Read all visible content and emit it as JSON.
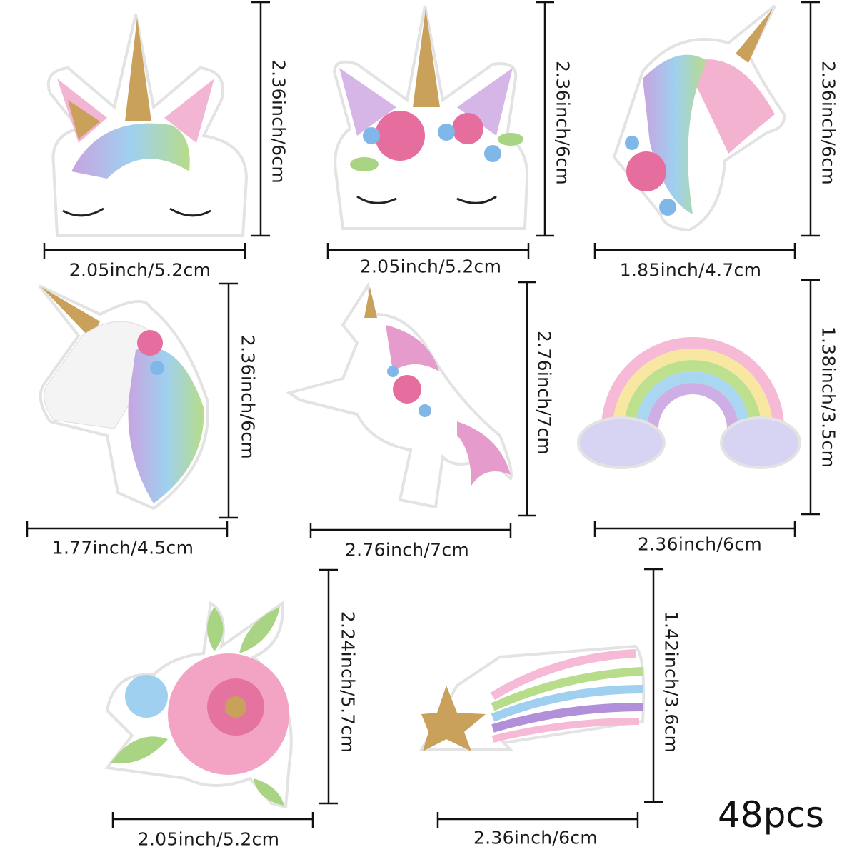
{
  "stickers": [
    {
      "name": "unicorn-face-glitter-horn",
      "height_label": "2.36inch/6cm",
      "width_label": "2.05inch/5.2cm"
    },
    {
      "name": "unicorn-face-flower-crown",
      "height_label": "2.36inch/6cm",
      "width_label": "2.05inch/5.2cm"
    },
    {
      "name": "unicorn-head-pink",
      "height_label": "2.36inch/6cm",
      "width_label": "1.85inch/4.7cm"
    },
    {
      "name": "unicorn-head-white",
      "height_label": "2.36inch/6cm",
      "width_label": "1.77inch/4.5cm"
    },
    {
      "name": "unicorn-rearing",
      "height_label": "2.76inch/7cm",
      "width_label": "2.76inch/7cm"
    },
    {
      "name": "rainbow-clouds",
      "height_label": "1.38inch/3.5cm",
      "width_label": "2.36inch/6cm"
    },
    {
      "name": "rose-flower",
      "height_label": "2.24inch/5.7cm",
      "width_label": "2.05inch/5.2cm"
    },
    {
      "name": "shooting-star",
      "height_label": "1.42inch/3.6cm",
      "width_label": "2.36inch/6cm"
    }
  ],
  "count_label": "48pcs",
  "colors": {
    "gold": "#c9a15a",
    "pink": "#ee8fb8",
    "purple": "#c9a3e0",
    "blue": "#9fd0ef",
    "green": "#b7dc8a",
    "line": "#111111"
  }
}
